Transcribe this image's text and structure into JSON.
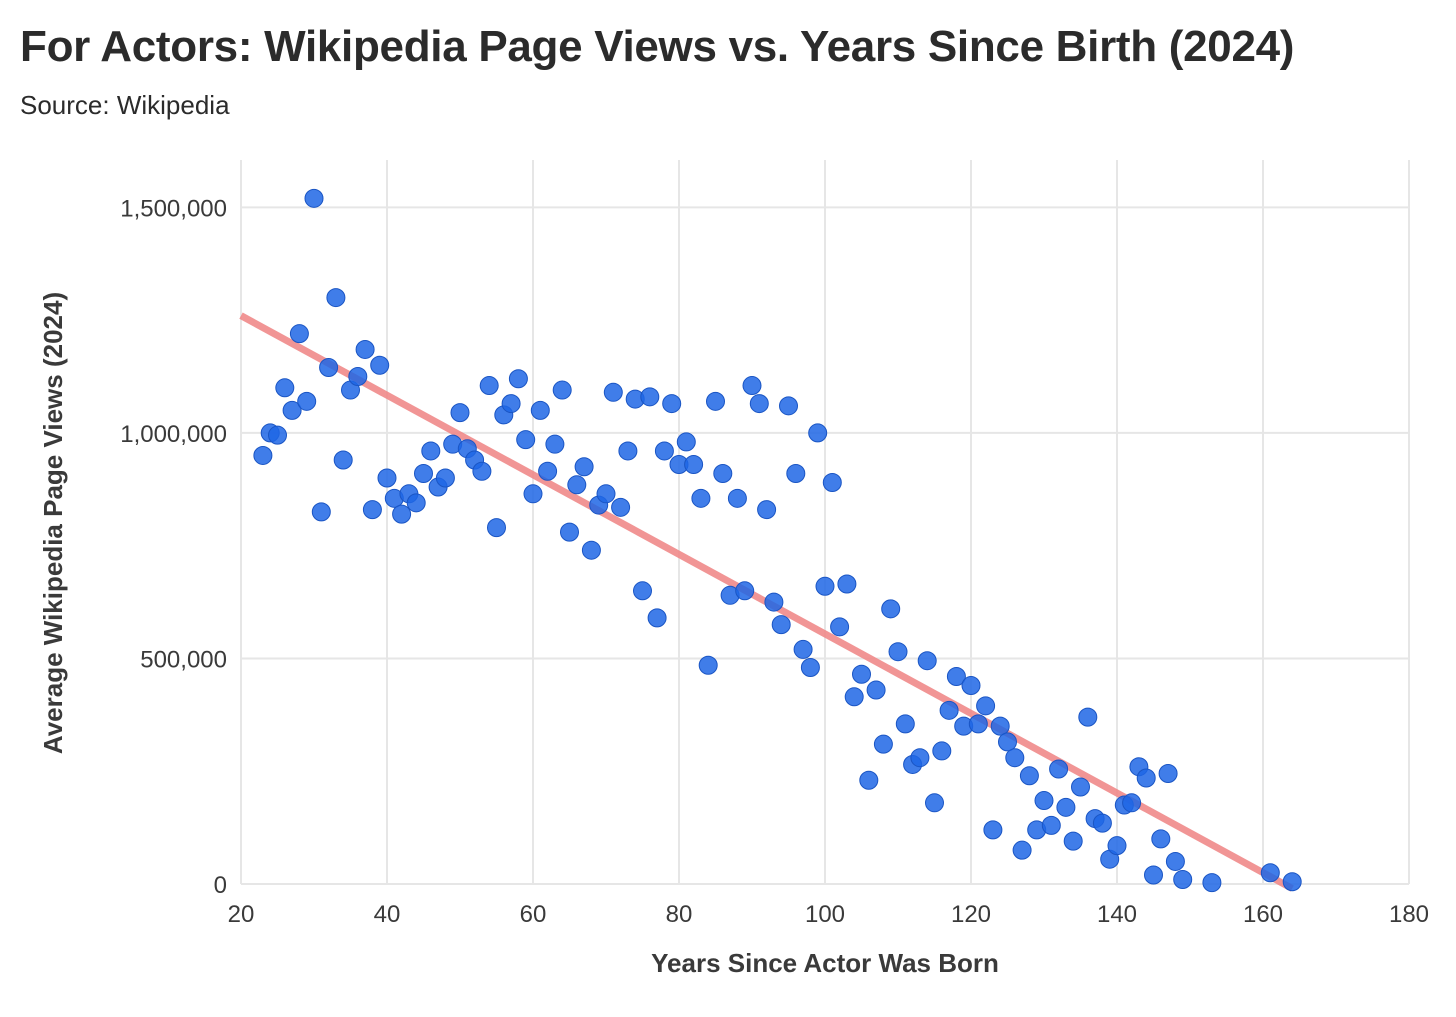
{
  "title": "For Actors: Wikipedia Page Views vs. Years Since Birth (2024)",
  "subtitle": "Source: Wikipedia",
  "colors": {
    "points": "#1f66e5",
    "points_stroke": "#1a55c4",
    "trend": "#f08a8a",
    "grid": "#e6e6e6",
    "text": "#2b2b2b"
  },
  "chart_data": {
    "type": "scatter",
    "title": "For Actors: Wikipedia Page Views vs. Years Since Birth (2024)",
    "subtitle": "Source: Wikipedia",
    "xlabel": "Years Since Actor Was Born",
    "ylabel": "Average Wikipedia Page Views (2024)",
    "xlim": [
      20,
      180
    ],
    "ylim": [
      0,
      1600000
    ],
    "xticks": [
      20,
      40,
      60,
      80,
      100,
      120,
      140,
      160,
      180
    ],
    "xtick_labels": [
      "20",
      "40",
      "60",
      "80",
      "100",
      "120",
      "140",
      "160",
      "180"
    ],
    "yticks": [
      0,
      500000,
      1000000,
      1500000
    ],
    "ytick_labels": [
      "0",
      "500,000",
      "1,000,000",
      "1,500,000"
    ],
    "grid": true,
    "trendline": {
      "x": [
        20,
        164
      ],
      "y": [
        1260000,
        -10000
      ]
    },
    "points": [
      [
        23,
        950000
      ],
      [
        24,
        1000000
      ],
      [
        25,
        995000
      ],
      [
        26,
        1100000
      ],
      [
        27,
        1050000
      ],
      [
        28,
        1220000
      ],
      [
        29,
        1070000
      ],
      [
        30,
        1520000
      ],
      [
        31,
        825000
      ],
      [
        32,
        1145000
      ],
      [
        33,
        1300000
      ],
      [
        34,
        940000
      ],
      [
        35,
        1095000
      ],
      [
        36,
        1125000
      ],
      [
        37,
        1185000
      ],
      [
        38,
        830000
      ],
      [
        39,
        1150000
      ],
      [
        40,
        900000
      ],
      [
        41,
        855000
      ],
      [
        42,
        820000
      ],
      [
        43,
        865000
      ],
      [
        44,
        845000
      ],
      [
        45,
        910000
      ],
      [
        46,
        960000
      ],
      [
        47,
        880000
      ],
      [
        48,
        900000
      ],
      [
        49,
        975000
      ],
      [
        50,
        1045000
      ],
      [
        51,
        965000
      ],
      [
        52,
        940000
      ],
      [
        53,
        915000
      ],
      [
        54,
        1105000
      ],
      [
        55,
        790000
      ],
      [
        56,
        1040000
      ],
      [
        57,
        1065000
      ],
      [
        58,
        1120000
      ],
      [
        59,
        985000
      ],
      [
        60,
        865000
      ],
      [
        61,
        1050000
      ],
      [
        62,
        915000
      ],
      [
        63,
        975000
      ],
      [
        64,
        1095000
      ],
      [
        65,
        780000
      ],
      [
        66,
        885000
      ],
      [
        67,
        925000
      ],
      [
        68,
        740000
      ],
      [
        69,
        840000
      ],
      [
        70,
        865000
      ],
      [
        71,
        1090000
      ],
      [
        72,
        835000
      ],
      [
        73,
        960000
      ],
      [
        74,
        1075000
      ],
      [
        75,
        650000
      ],
      [
        76,
        1080000
      ],
      [
        77,
        590000
      ],
      [
        78,
        960000
      ],
      [
        79,
        1065000
      ],
      [
        80,
        930000
      ],
      [
        81,
        980000
      ],
      [
        82,
        930000
      ],
      [
        83,
        855000
      ],
      [
        84,
        485000
      ],
      [
        85,
        1070000
      ],
      [
        86,
        910000
      ],
      [
        87,
        640000
      ],
      [
        88,
        855000
      ],
      [
        89,
        650000
      ],
      [
        90,
        1105000
      ],
      [
        91,
        1065000
      ],
      [
        92,
        830000
      ],
      [
        93,
        625000
      ],
      [
        94,
        575000
      ],
      [
        95,
        1060000
      ],
      [
        96,
        910000
      ],
      [
        97,
        520000
      ],
      [
        98,
        480000
      ],
      [
        99,
        1000000
      ],
      [
        100,
        660000
      ],
      [
        101,
        890000
      ],
      [
        102,
        570000
      ],
      [
        103,
        665000
      ],
      [
        104,
        415000
      ],
      [
        105,
        465000
      ],
      [
        106,
        230000
      ],
      [
        107,
        430000
      ],
      [
        108,
        310000
      ],
      [
        109,
        610000
      ],
      [
        110,
        515000
      ],
      [
        111,
        355000
      ],
      [
        112,
        265000
      ],
      [
        113,
        280000
      ],
      [
        114,
        495000
      ],
      [
        115,
        180000
      ],
      [
        116,
        295000
      ],
      [
        117,
        385000
      ],
      [
        118,
        460000
      ],
      [
        119,
        350000
      ],
      [
        120,
        440000
      ],
      [
        121,
        355000
      ],
      [
        122,
        395000
      ],
      [
        123,
        120000
      ],
      [
        124,
        350000
      ],
      [
        125,
        315000
      ],
      [
        126,
        280000
      ],
      [
        127,
        75000
      ],
      [
        128,
        240000
      ],
      [
        129,
        120000
      ],
      [
        130,
        185000
      ],
      [
        131,
        130000
      ],
      [
        132,
        255000
      ],
      [
        133,
        170000
      ],
      [
        134,
        95000
      ],
      [
        135,
        215000
      ],
      [
        136,
        370000
      ],
      [
        137,
        145000
      ],
      [
        138,
        135000
      ],
      [
        139,
        55000
      ],
      [
        140,
        85000
      ],
      [
        141,
        175000
      ],
      [
        142,
        180000
      ],
      [
        143,
        260000
      ],
      [
        144,
        235000
      ],
      [
        145,
        20000
      ],
      [
        146,
        100000
      ],
      [
        147,
        245000
      ],
      [
        148,
        50000
      ],
      [
        149,
        10000
      ],
      [
        153,
        3000
      ],
      [
        161,
        25000
      ],
      [
        164,
        5000
      ]
    ]
  }
}
